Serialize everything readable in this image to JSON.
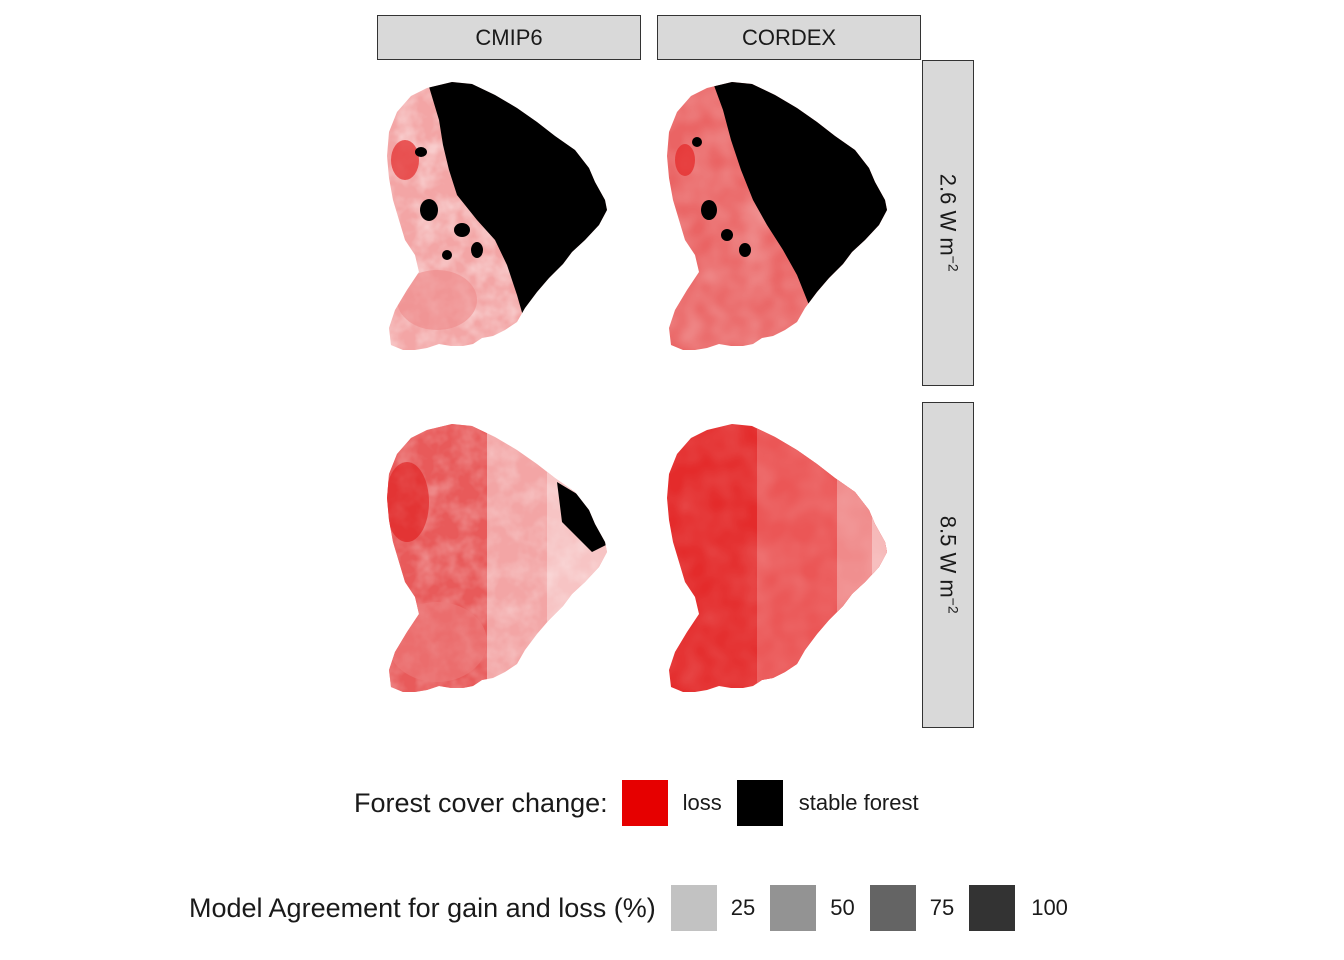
{
  "facets": {
    "columns": [
      "CMIP6",
      "CORDEX"
    ],
    "rows": [
      {
        "value": "2.6",
        "unit": "W m",
        "exponent": "−2"
      },
      {
        "value": "8.5",
        "unit": "W m",
        "exponent": "−2"
      }
    ]
  },
  "legend_forest": {
    "title": "Forest cover change:",
    "items": [
      {
        "label": "loss",
        "color": "#e60000"
      },
      {
        "label": "stable forest",
        "color": "#000000"
      }
    ]
  },
  "legend_agreement": {
    "title": "Model Agreement for gain and loss (%)",
    "items": [
      {
        "label": "25",
        "color": "#c2c2c2"
      },
      {
        "label": "50",
        "color": "#939393"
      },
      {
        "label": "75",
        "color": "#646464"
      },
      {
        "label": "100",
        "color": "#333333"
      }
    ]
  }
}
